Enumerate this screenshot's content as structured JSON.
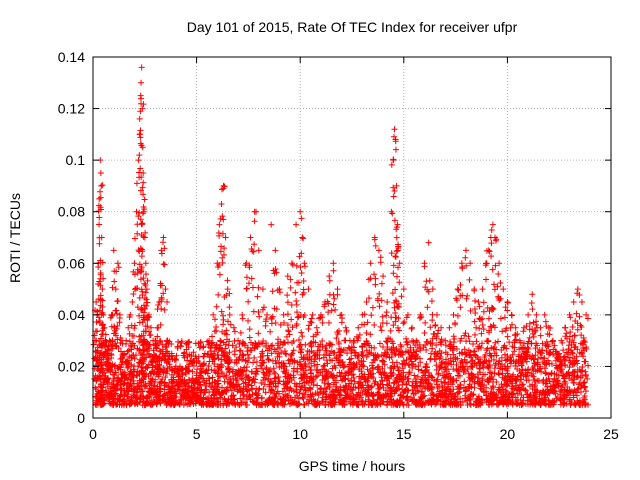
{
  "chart_data": {
    "type": "scatter",
    "title": "Day 101 of 2015, Rate Of TEC Index for receiver ufpr",
    "xlabel": "GPS time / hours",
    "ylabel": "ROTI / TECUs",
    "xlim": [
      0,
      25
    ],
    "ylim": [
      0,
      0.14
    ],
    "x_ticks": [
      0,
      5,
      10,
      15,
      20,
      25
    ],
    "x_tick_labels": [
      "0",
      "5",
      "10",
      "15",
      "20",
      "25"
    ],
    "y_ticks": [
      0,
      0.02,
      0.04,
      0.06,
      0.08,
      0.1,
      0.12,
      0.14
    ],
    "y_tick_labels": [
      "0",
      "0.02",
      "0.04",
      "0.06",
      "0.08",
      "0.1",
      "0.12",
      "0.14"
    ],
    "grid": true,
    "marker": "+",
    "color": "#ff0000",
    "series": [
      {
        "name": "ROTI",
        "x": [
          0.1,
          0.15,
          0.2,
          0.25,
          0.3,
          0.35,
          0.38,
          0.4,
          0.42,
          0.45,
          0.5,
          0.55,
          0.6,
          0.7,
          0.8,
          0.9,
          1.0,
          1.1,
          1.2,
          1.3,
          1.4,
          1.5,
          1.6,
          1.7,
          1.8,
          1.9,
          2.0,
          2.1,
          2.2,
          2.25,
          2.3,
          2.32,
          2.35,
          2.38,
          2.4,
          2.42,
          2.45,
          2.5,
          2.55,
          2.6,
          2.7,
          2.8,
          2.9,
          3.0,
          3.1,
          3.2,
          3.3,
          3.4,
          3.5,
          3.6,
          3.8,
          4.0,
          4.2,
          4.4,
          4.6,
          4.8,
          5.0,
          5.2,
          5.4,
          5.6,
          5.8,
          6.0,
          6.1,
          6.2,
          6.3,
          6.4,
          6.5,
          6.6,
          6.8,
          7.0,
          7.2,
          7.4,
          7.6,
          7.8,
          8.0,
          8.2,
          8.4,
          8.6,
          8.8,
          9.0,
          9.2,
          9.4,
          9.6,
          9.8,
          10.0,
          10.1,
          10.2,
          10.4,
          10.6,
          10.8,
          11.0,
          11.2,
          11.4,
          11.6,
          11.8,
          12.0,
          12.2,
          12.4,
          12.6,
          12.8,
          13.0,
          13.2,
          13.4,
          13.6,
          13.8,
          14.0,
          14.2,
          14.4,
          14.5,
          14.55,
          14.6,
          14.65,
          14.7,
          14.8,
          15.0,
          15.2,
          15.4,
          15.6,
          15.8,
          16.0,
          16.2,
          16.4,
          16.6,
          16.8,
          17.0,
          17.2,
          17.4,
          17.6,
          17.8,
          18.0,
          18.2,
          18.4,
          18.6,
          18.8,
          19.0,
          19.1,
          19.2,
          19.3,
          19.4,
          19.6,
          19.8,
          20.0,
          20.2,
          20.4,
          20.6,
          20.8,
          21.0,
          21.2,
          21.4,
          21.6,
          21.8,
          22.0,
          22.2,
          22.4,
          22.6,
          22.8,
          23.0,
          23.2,
          23.4,
          23.6,
          23.8
        ],
        "y": [
          0.03,
          0.045,
          0.04,
          0.06,
          0.085,
          0.1,
          0.095,
          0.09,
          0.07,
          0.05,
          0.04,
          0.035,
          0.03,
          0.025,
          0.03,
          0.04,
          0.065,
          0.05,
          0.06,
          0.04,
          0.03,
          0.025,
          0.03,
          0.035,
          0.04,
          0.045,
          0.06,
          0.08,
          0.1,
          0.11,
          0.125,
          0.13,
          0.136,
          0.12,
          0.105,
          0.095,
          0.08,
          0.07,
          0.06,
          0.05,
          0.04,
          0.035,
          0.03,
          0.03,
          0.035,
          0.045,
          0.065,
          0.07,
          0.05,
          0.03,
          0.025,
          0.02,
          0.02,
          0.025,
          0.02,
          0.018,
          0.015,
          0.02,
          0.025,
          0.03,
          0.04,
          0.06,
          0.075,
          0.083,
          0.09,
          0.07,
          0.05,
          0.04,
          0.035,
          0.03,
          0.04,
          0.06,
          0.07,
          0.08,
          0.065,
          0.05,
          0.04,
          0.075,
          0.065,
          0.05,
          0.04,
          0.055,
          0.06,
          0.075,
          0.08,
          0.07,
          0.06,
          0.05,
          0.04,
          0.035,
          0.04,
          0.045,
          0.055,
          0.06,
          0.05,
          0.04,
          0.035,
          0.03,
          0.03,
          0.035,
          0.04,
          0.045,
          0.06,
          0.07,
          0.065,
          0.055,
          0.045,
          0.08,
          0.1,
          0.112,
          0.108,
          0.09,
          0.075,
          0.06,
          0.05,
          0.04,
          0.035,
          0.03,
          0.04,
          0.06,
          0.068,
          0.05,
          0.04,
          0.035,
          0.03,
          0.035,
          0.04,
          0.05,
          0.06,
          0.065,
          0.06,
          0.05,
          0.045,
          0.05,
          0.06,
          0.065,
          0.07,
          0.075,
          0.07,
          0.06,
          0.05,
          0.045,
          0.04,
          0.035,
          0.03,
          0.035,
          0.04,
          0.048,
          0.04,
          0.035,
          0.04,
          0.035,
          0.03,
          0.025,
          0.03,
          0.035,
          0.04,
          0.045,
          0.05,
          0.045,
          0.04
        ],
        "baseline_min": 0.005,
        "baseline_max": 0.03
      }
    ]
  }
}
